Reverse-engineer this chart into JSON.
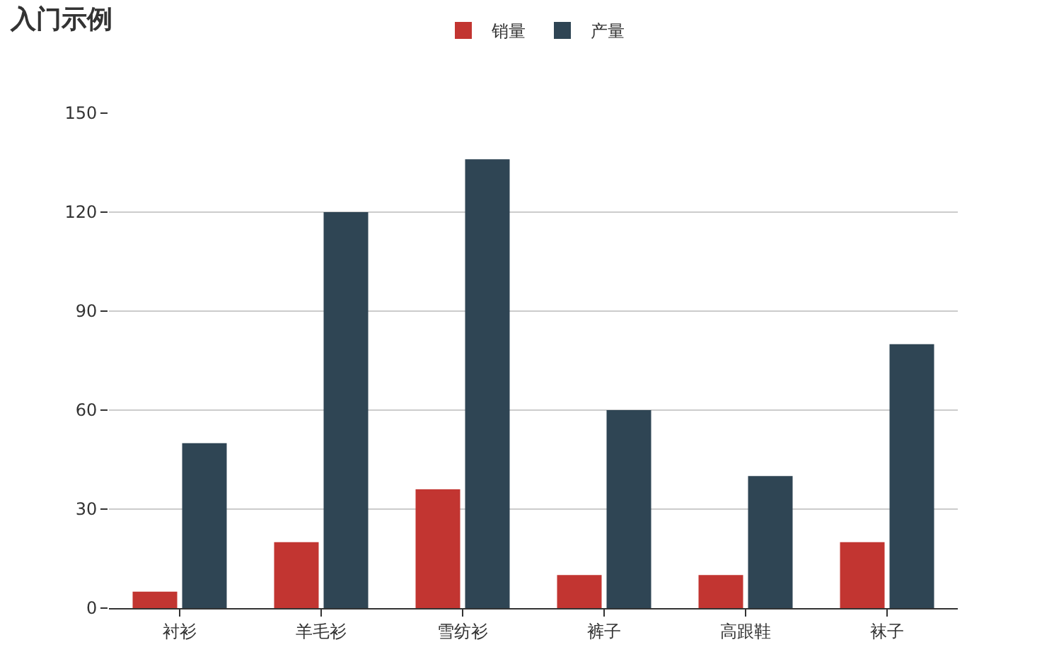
{
  "chart_data": {
    "type": "bar",
    "title": "入门示例",
    "categories": [
      "衬衫",
      "羊毛衫",
      "雪纺衫",
      "裤子",
      "高跟鞋",
      "袜子"
    ],
    "series": [
      {
        "name": "销量",
        "color": "#c23531",
        "values": [
          5,
          20,
          36,
          10,
          10,
          20
        ]
      },
      {
        "name": "产量",
        "color": "#2f4554",
        "values": [
          50,
          120,
          136,
          60,
          40,
          80
        ]
      }
    ],
    "ylim": [
      0,
      150
    ],
    "yticks": [
      0,
      30,
      60,
      90,
      120,
      150
    ],
    "grid": "y",
    "legend": "top"
  }
}
